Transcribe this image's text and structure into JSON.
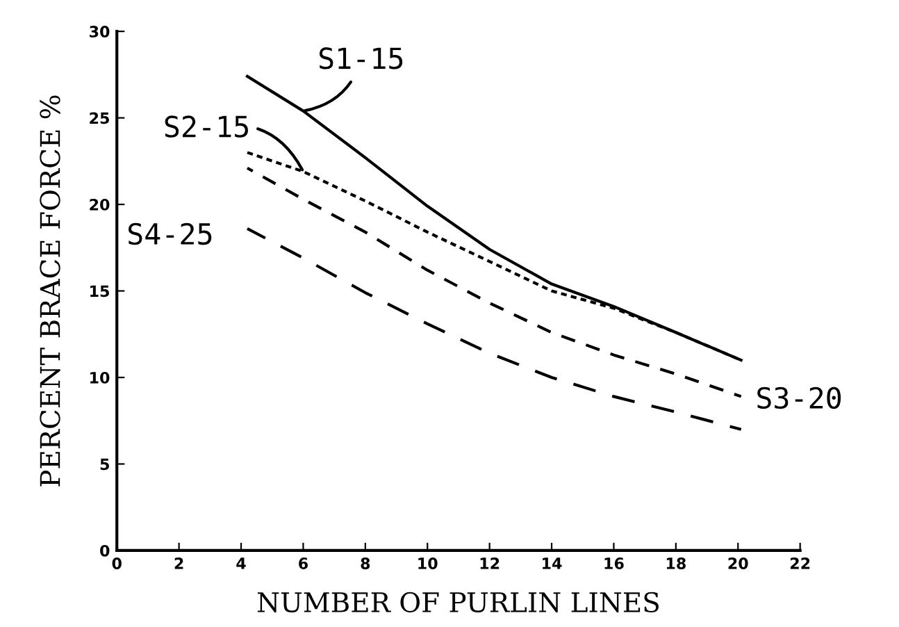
{
  "chart_data": {
    "type": "line",
    "xlabel": "NUMBER OF PURLIN LINES",
    "ylabel": "PERCENT BRACE FORCE %",
    "x": [
      4.2,
      6,
      8,
      10,
      12,
      14,
      16,
      18,
      20.1
    ],
    "series": [
      {
        "name": "S1-15",
        "color": "#000000",
        "line_style": "solid",
        "values": [
          27.4,
          25.4,
          22.7,
          19.9,
          17.4,
          15.4,
          14.1,
          12.6,
          11.0
        ]
      },
      {
        "name": "S2-15",
        "color": "#000000",
        "line_style": "dotted",
        "values": [
          23.0,
          21.9,
          20.2,
          18.4,
          16.7,
          15.0,
          14.0,
          12.6,
          11.0
        ]
      },
      {
        "name": "S3-20",
        "color": "#000000",
        "line_style": "dashed",
        "values": [
          22.1,
          20.3,
          18.4,
          16.2,
          14.3,
          12.6,
          11.3,
          10.2,
          8.9
        ]
      },
      {
        "name": "S4-25",
        "color": "#000000",
        "line_style": "dashed",
        "values": [
          18.6,
          16.9,
          14.9,
          13.1,
          11.4,
          10.0,
          8.9,
          8.0,
          7.0
        ]
      }
    ],
    "xlim": [
      0,
      22
    ],
    "ylim": [
      0,
      30
    ],
    "xticks": [
      0,
      2,
      4,
      6,
      8,
      10,
      12,
      14,
      16,
      18,
      20,
      22
    ],
    "yticks": [
      0,
      5,
      10,
      15,
      20,
      25,
      30
    ],
    "grid": false,
    "legend": false,
    "marker": "none"
  }
}
